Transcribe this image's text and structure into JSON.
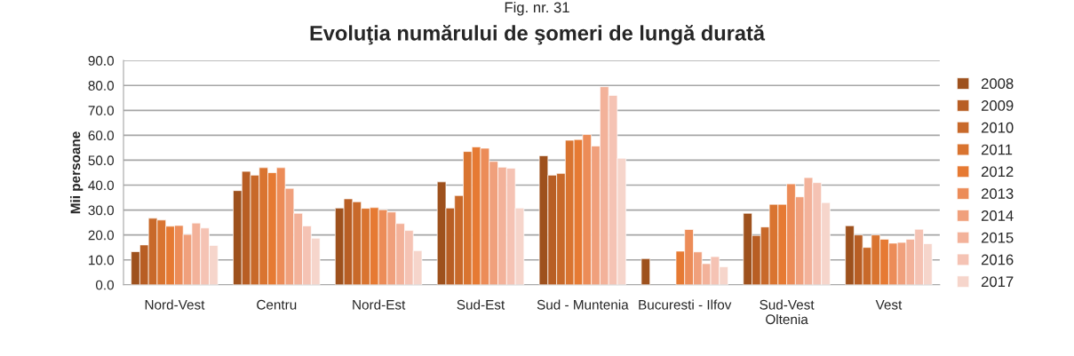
{
  "chart_data": {
    "type": "bar",
    "title": "Evoluţia numărului de şomeri de lungă durată",
    "annotations": [
      "Fig. nr. 31"
    ],
    "ylabel": "Mii persoane",
    "categories": [
      "Nord-Vest",
      "Centru",
      "Nord-Est",
      "Sud-Est",
      "Sud - Muntenia",
      "Bucuresti - Ilfov",
      "Sud-Vest\nOltenia",
      "Vest"
    ],
    "series": [
      {
        "name": "2008",
        "color": "#9e511d",
        "values": [
          13.3,
          37.8,
          30.8,
          41.3,
          51.8,
          10.5,
          28.7,
          23.7
        ]
      },
      {
        "name": "2009",
        "color": "#b85e24",
        "values": [
          16.0,
          45.5,
          34.5,
          30.8,
          44.0,
          null,
          19.8,
          20.0
        ]
      },
      {
        "name": "2010",
        "color": "#c8692a",
        "values": [
          26.7,
          44.0,
          33.3,
          35.8,
          44.7,
          null,
          23.2,
          15.0
        ]
      },
      {
        "name": "2011",
        "color": "#d97430",
        "values": [
          26.0,
          47.0,
          30.7,
          53.5,
          58.0,
          null,
          32.3,
          20.0
        ]
      },
      {
        "name": "2012",
        "color": "#e67a33",
        "values": [
          23.5,
          45.0,
          31.0,
          55.3,
          58.3,
          13.5,
          32.3,
          18.3
        ]
      },
      {
        "name": "2013",
        "color": "#ec8c58",
        "values": [
          23.8,
          47.0,
          30.1,
          54.8,
          60.3,
          22.2,
          40.5,
          16.7
        ]
      },
      {
        "name": "2014",
        "color": "#f0a07c",
        "values": [
          20.2,
          38.7,
          29.2,
          49.5,
          55.7,
          13.2,
          35.3,
          17.0
        ]
      },
      {
        "name": "2015",
        "color": "#f3b29a",
        "values": [
          24.8,
          28.7,
          24.6,
          47.2,
          79.5,
          8.5,
          43.0,
          18.3
        ]
      },
      {
        "name": "2016",
        "color": "#f5c3b4",
        "values": [
          22.8,
          23.6,
          21.8,
          46.8,
          76.0,
          11.3,
          41.0,
          22.3
        ]
      },
      {
        "name": "2017",
        "color": "#f6d5cb",
        "values": [
          15.8,
          18.7,
          13.7,
          30.8,
          50.8,
          7.2,
          33.0,
          16.5
        ]
      }
    ],
    "ylim": [
      0,
      90
    ],
    "yticks": [
      {
        "value": 0,
        "label": "0.0"
      },
      {
        "value": 10,
        "label": "10.0"
      },
      {
        "value": 20,
        "label": "20.0"
      },
      {
        "value": 30,
        "label": "30.0"
      },
      {
        "value": 40,
        "label": "40.0"
      },
      {
        "value": 50,
        "label": "50.0"
      },
      {
        "value": 60,
        "label": "60.0"
      },
      {
        "value": 70,
        "label": "70.0"
      },
      {
        "value": 80,
        "label": "80.0"
      },
      {
        "value": 90,
        "label": "90.0"
      }
    ],
    "grid": "y",
    "legend": "right"
  }
}
